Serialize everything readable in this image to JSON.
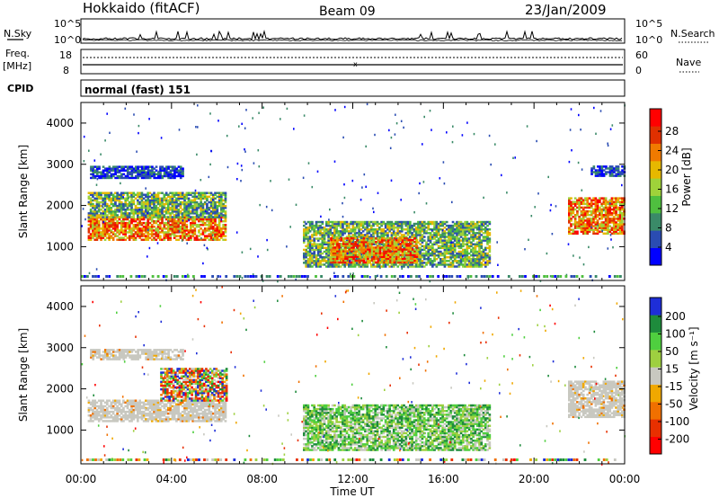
{
  "header": {
    "station": "Hokkaido (fitACF)",
    "beam": "Beam 09",
    "date": "23/Jan/2009"
  },
  "noise_panel": {
    "left_label_1": "N.Sky",
    "right_label": "N.Search",
    "left_ticks": [
      "10^5",
      "10^0"
    ],
    "right_ticks": [
      "10^5",
      "10^0"
    ]
  },
  "freq_panel": {
    "left_label_1": "Freq.",
    "left_label_2": "[MHz]",
    "right_label": "Nave",
    "left_ticks": [
      "18",
      "8"
    ],
    "right_ticks": [
      "60",
      "0"
    ]
  },
  "cpid_panel": {
    "label": "CPID",
    "text": "normal (fast) 151"
  },
  "colors": {
    "power": [
      "#0000ff",
      "#2a4cb2",
      "#3a8a68",
      "#4fbf3f",
      "#9fd23a",
      "#e6b800",
      "#f07a00",
      "#e03000",
      "#ff0000"
    ],
    "velocity": [
      "#1e2ed8",
      "#1e8b3c",
      "#4fcf3f",
      "#9ed040",
      "#c8c8c0",
      "#f0a800",
      "#f07000",
      "#e83000",
      "#ff0000"
    ]
  },
  "chart_data": [
    {
      "type": "heatmap",
      "name": "power-panel",
      "ylabel": "Slant Range [km]",
      "ylim": [
        180,
        4500
      ],
      "yticks": [
        1000,
        2000,
        3000,
        4000
      ],
      "x_ticks": [
        "00:00",
        "04:00",
        "08:00",
        "12:00",
        "16:00",
        "20:00",
        "00:00"
      ],
      "colorbar": {
        "label": "Power [dB]",
        "ticks": [
          "28",
          "24",
          "20",
          "16",
          "12",
          "8",
          "4"
        ]
      },
      "regions": [
        {
          "t": [
            0.3,
            6.4
          ],
          "r": [
            1150,
            1700
          ],
          "level": "high"
        },
        {
          "t": [
            0.3,
            6.4
          ],
          "r": [
            1700,
            2300
          ],
          "level": "mid"
        },
        {
          "t": [
            0.4,
            4.5
          ],
          "r": [
            2650,
            2950
          ],
          "level": "low"
        },
        {
          "t": [
            9.8,
            18.0
          ],
          "r": [
            500,
            1600
          ],
          "level": "mid"
        },
        {
          "t": [
            11.0,
            14.8
          ],
          "r": [
            600,
            1200
          ],
          "level": "high"
        },
        {
          "t": [
            21.5,
            24.0
          ],
          "r": [
            1300,
            2200
          ],
          "level": "high"
        },
        {
          "t": [
            22.5,
            24.0
          ],
          "r": [
            2700,
            2950
          ],
          "level": "low"
        }
      ]
    },
    {
      "type": "heatmap",
      "name": "velocity-panel",
      "ylabel": "Slant Range [km]",
      "ylim": [
        180,
        4500
      ],
      "yticks": [
        1000,
        2000,
        3000,
        4000
      ],
      "xlabel": "Time UT",
      "x_ticks": [
        "00:00",
        "04:00",
        "08:00",
        "12:00",
        "16:00",
        "20:00",
        "00:00"
      ],
      "colorbar": {
        "label": "Velocity [m s⁻¹]",
        "ticks": [
          "200",
          "100",
          "50",
          "15",
          "-15",
          "-50",
          "-100",
          "-200"
        ]
      },
      "regions": [
        {
          "t": [
            0.3,
            6.4
          ],
          "r": [
            1200,
            1700
          ],
          "level": "ground"
        },
        {
          "t": [
            3.5,
            6.4
          ],
          "r": [
            1700,
            2500
          ],
          "level": "mixed"
        },
        {
          "t": [
            0.4,
            4.5
          ],
          "r": [
            2700,
            2950
          ],
          "level": "ground"
        },
        {
          "t": [
            9.8,
            18.0
          ],
          "r": [
            500,
            1600
          ],
          "level": "positive"
        },
        {
          "t": [
            21.5,
            24.0
          ],
          "r": [
            1300,
            2200
          ],
          "level": "ground"
        }
      ]
    }
  ]
}
